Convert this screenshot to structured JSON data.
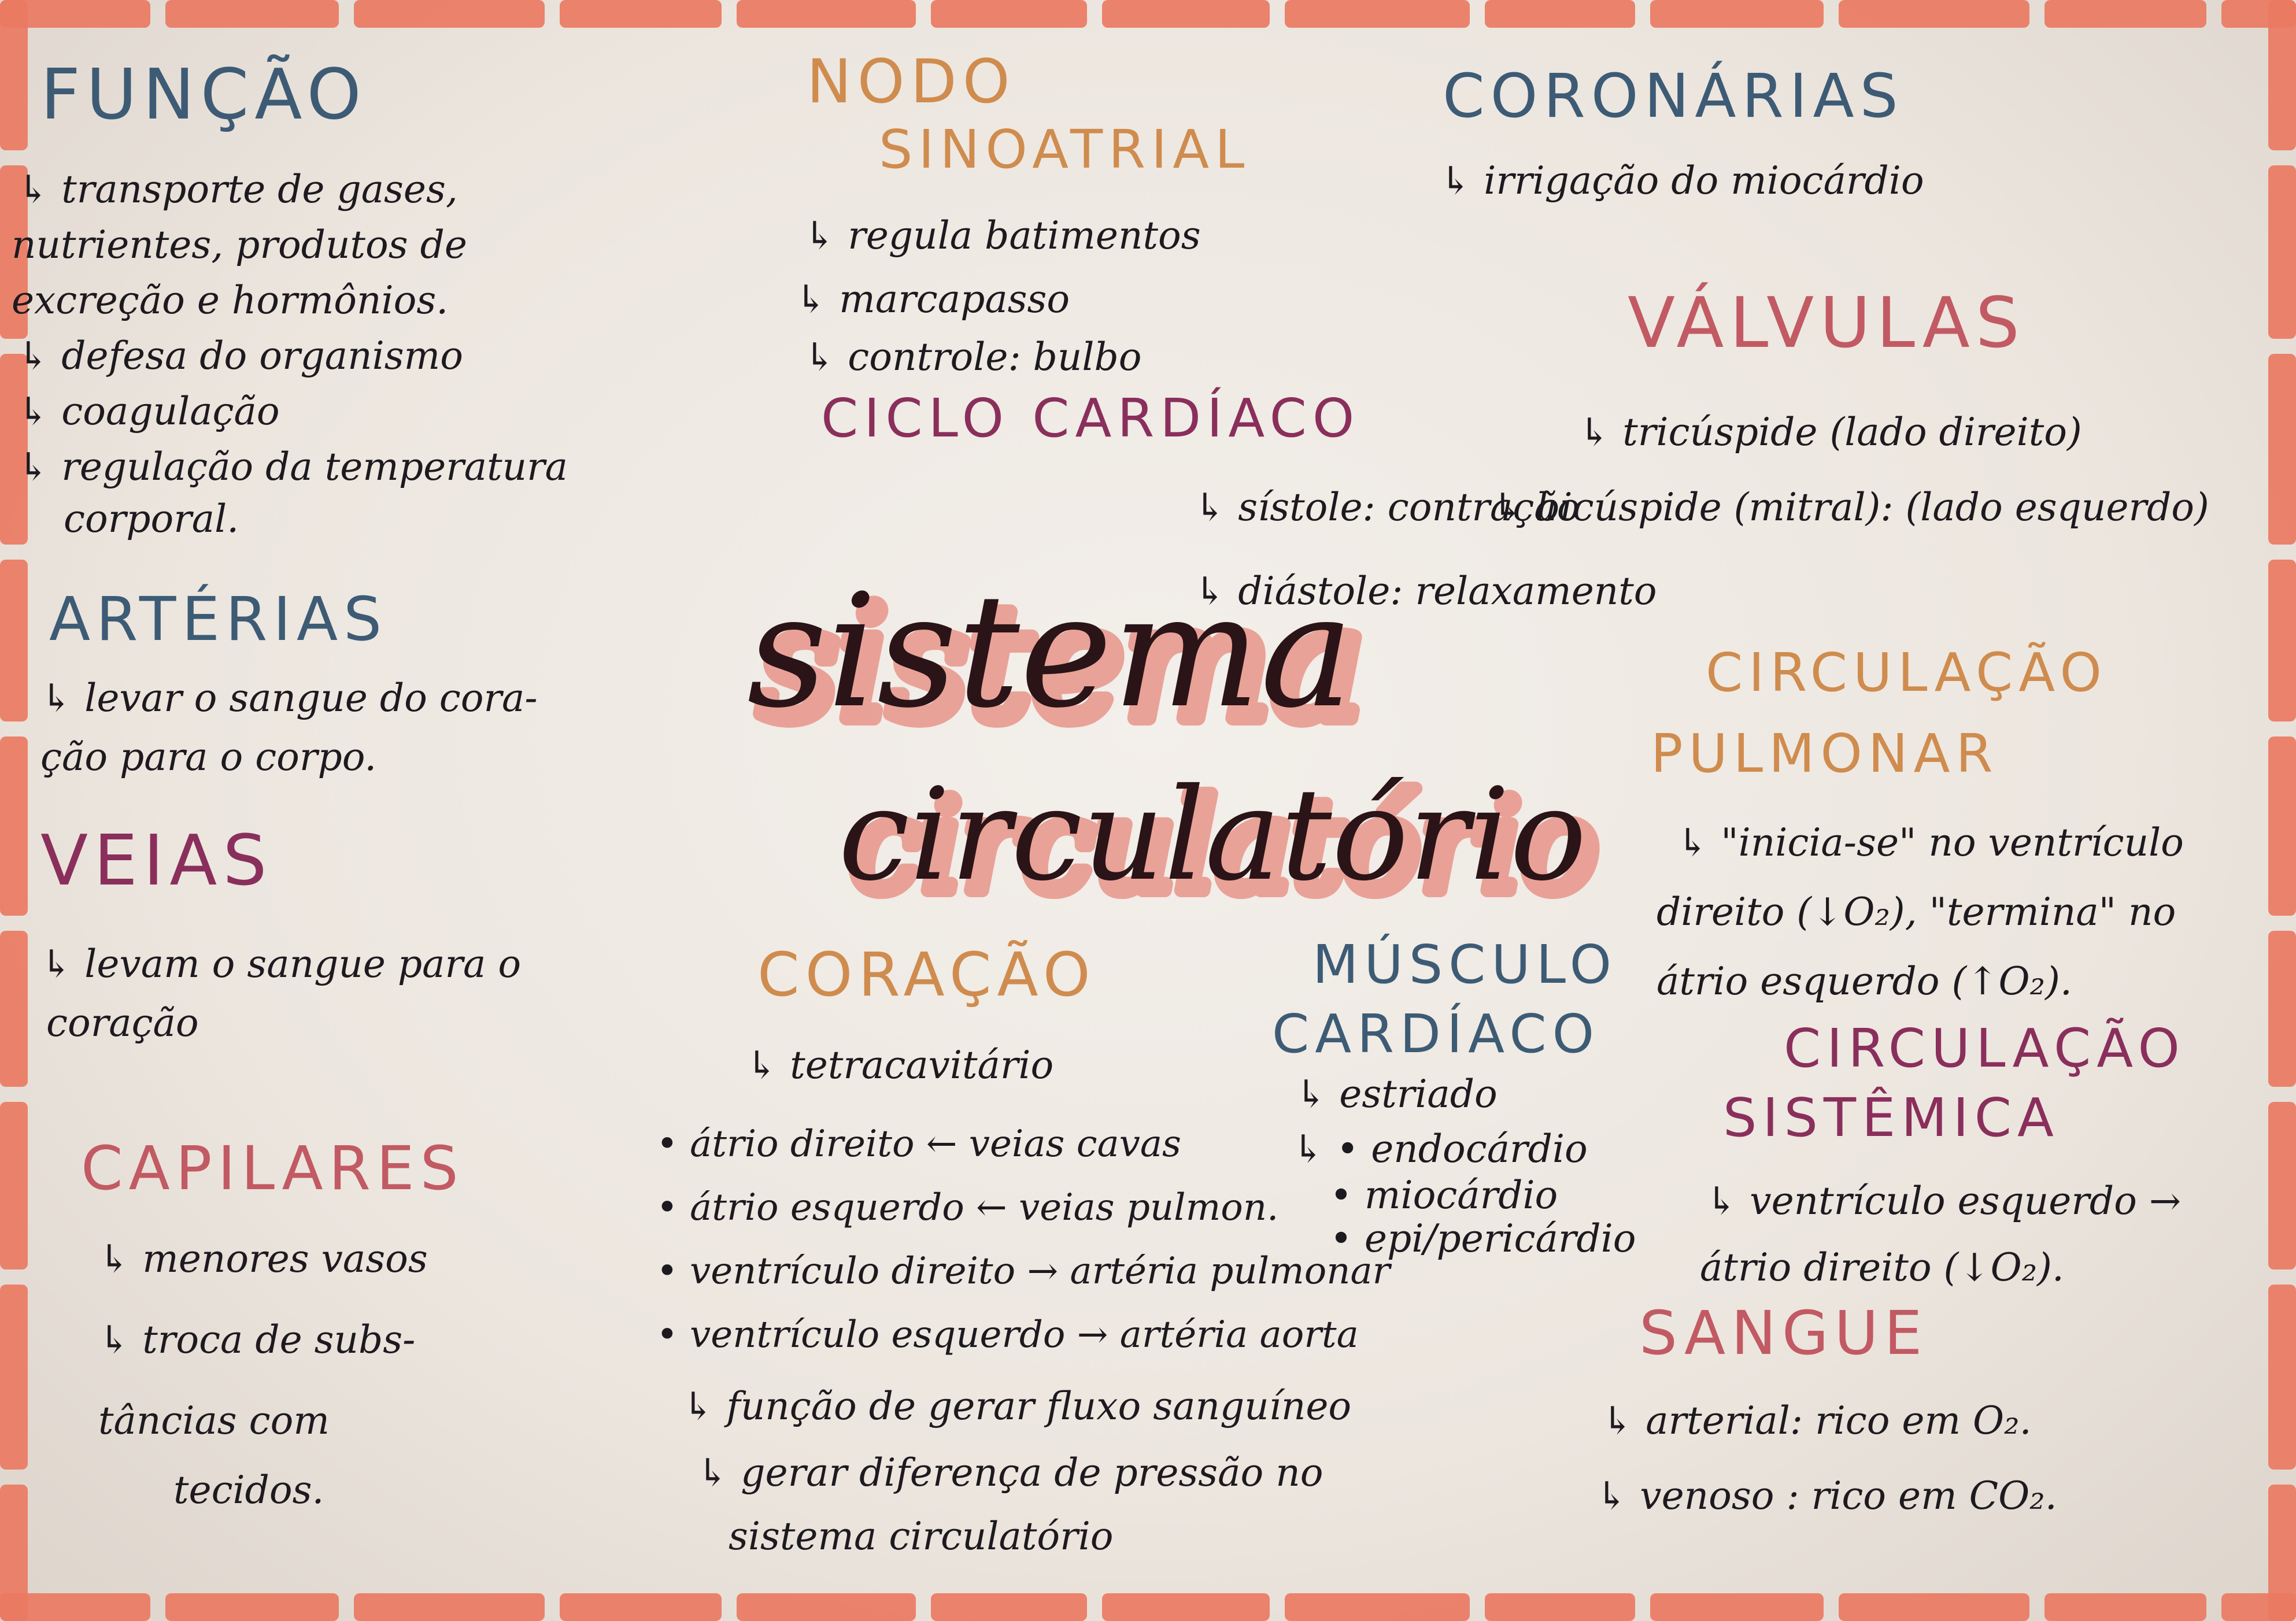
{
  "title": {
    "line1": "sistema",
    "line2": "circulatório"
  },
  "colors": {
    "border": "#ea7a62",
    "title_shadow": "#e8958a",
    "paper": "#efeae4"
  },
  "sections": {
    "funcao": {
      "heading": "FUNÇÃO",
      "lines": [
        "↳ transporte de gases,",
        "nutrientes, produtos de",
        "excreção e hormônios.",
        "↳ defesa do organismo",
        "↳ coagulação",
        "↳ regulação da temperatura",
        "corporal."
      ]
    },
    "arterias": {
      "heading": "ARTÉRIAS",
      "lines": [
        "↳ levar o sangue do cora-",
        "ção para o corpo."
      ]
    },
    "veias": {
      "heading": "VEIAS",
      "lines": [
        "↳ levam o sangue para o",
        "coração"
      ]
    },
    "capilares": {
      "heading": "CAPILARES",
      "lines": [
        "↳ menores vasos",
        "↳ troca de subs-",
        "tâncias   com",
        "tecidos."
      ]
    },
    "nodo": {
      "heading1": "NODO",
      "heading2": "SINOATRIAL",
      "lines": [
        "↳ regula batimentos",
        "↳ marcapasso",
        "↳ controle: bulbo"
      ]
    },
    "ciclo": {
      "heading": "CICLO  CARDÍACO",
      "lines": [
        "↳ sístole: contração",
        "↳ diástole: relaxamento"
      ]
    },
    "coronarias": {
      "heading": "CORONÁRIAS",
      "lines": [
        "↳ irrigação  do  miocárdio"
      ]
    },
    "valvulas": {
      "heading": "VÁLVULAS",
      "lines": [
        "↳ tricúspide (lado direito)",
        "↳ bicúspide (mitral): (lado esquerdo)"
      ]
    },
    "circ_pulmonar": {
      "heading1": "CIRCULAÇÃO",
      "heading2": "PULMONAR",
      "lines": [
        "↳ \"inicia-se\" no ventrículo",
        "direito (↓O₂), \"termina\" no",
        "átrio esquerdo (↑O₂)."
      ]
    },
    "coracao": {
      "heading": "CORAÇÃO",
      "lines": [
        "↳ tetracavitário"
      ],
      "bullets": [
        "• átrio direito ← veias cavas",
        "• átrio esquerdo ← veias pulmon.",
        "• ventrículo direito → artéria pulmonar",
        "• ventrículo esquerdo → artéria aorta"
      ],
      "sub": [
        "↳ função de gerar fluxo sanguíneo",
        "↳ gerar diferença de pressão no",
        "sistema circulatório"
      ]
    },
    "musculo": {
      "heading1": "MÚSCULO",
      "heading2": "CARDÍACO",
      "lines": [
        "↳ estriado",
        "↳ • endocárdio",
        "• miocárdio",
        "• epi/pericárdio"
      ]
    },
    "circ_sistemica": {
      "heading1": "CIRCULAÇÃO",
      "heading2": "SISTÊMICA",
      "lines": [
        "↳ ventrículo esquerdo →",
        "átrio direito (↓O₂)."
      ]
    },
    "sangue": {
      "heading": "SANGUE",
      "lines": [
        "↳ arterial: rico em O₂.",
        "↳ venoso : rico  em  CO₂."
      ]
    }
  }
}
